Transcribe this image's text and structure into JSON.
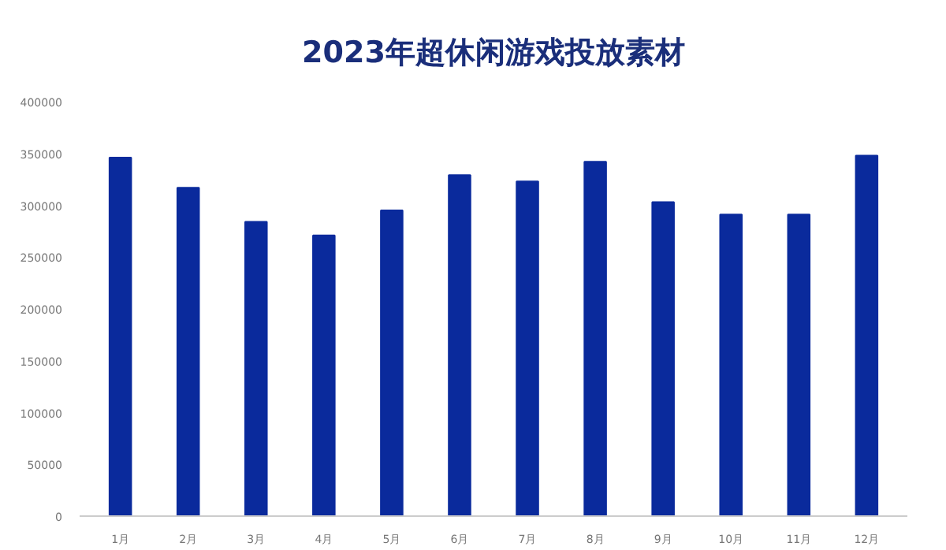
{
  "chart_data": {
    "type": "bar",
    "title": "2023年超休闲游戏投放素材",
    "categories": [
      "1月",
      "2月",
      "3月",
      "4月",
      "5月",
      "6月",
      "7月",
      "8月",
      "9月",
      "10月",
      "11月",
      "12月"
    ],
    "values": [
      346000,
      317000,
      284000,
      271000,
      295000,
      329000,
      323000,
      342000,
      303000,
      291000,
      291000,
      348000
    ],
    "color": "#0a2a9c",
    "ylim": [
      0,
      400000
    ],
    "yticks": [
      0,
      50000,
      100000,
      150000,
      200000,
      250000,
      300000,
      350000,
      400000
    ],
    "grid": false
  }
}
